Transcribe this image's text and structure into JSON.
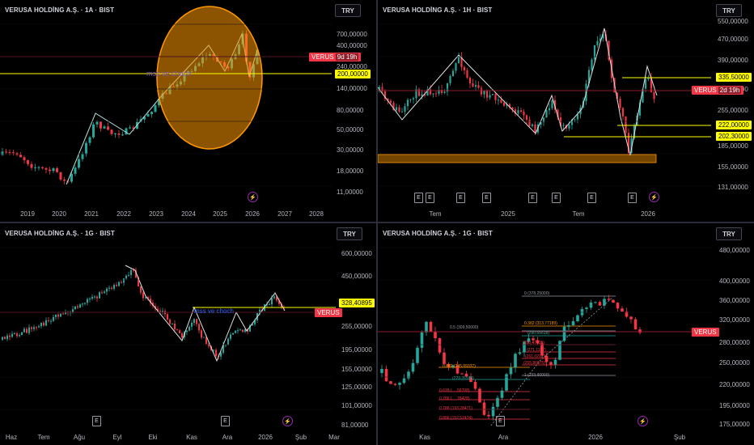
{
  "colors": {
    "up": "#26a69a",
    "down": "#f23645",
    "accent": "#ffff00",
    "circle": "#ff9800",
    "grid": "#1e222d"
  },
  "panels": {
    "p1": {
      "title": "VERUSA HOLDİNG A.Ş. · 1A · BIST",
      "currency": "TRY",
      "yticks": [
        "700,00000",
        "400,00000",
        "240,00000",
        "140,00000",
        "80,00000",
        "50,00000",
        "30,00000",
        "18,00000",
        "11,00000"
      ],
      "xticks": [
        "2019",
        "2020",
        "2021",
        "2022",
        "2023",
        "2024",
        "2025",
        "2026",
        "2027",
        "2028"
      ],
      "price_tag": "VERUS",
      "countdown": "9d 19h",
      "level": "200,00000",
      "annotation": "mss ve choch"
    },
    "p2": {
      "title": "VERUSA HOLDİNG A.Ş. · 1H · BIST",
      "currency": "TRY",
      "yticks": [
        "550,00000",
        "470,00000",
        "390,00000",
        "320,00000",
        "255,00000",
        "185,00000",
        "155,00000",
        "131,00000"
      ],
      "xticks": [
        "Tem",
        "2025",
        "Tem",
        "2026"
      ],
      "price_tag": "VERUS",
      "countdown": "2d 19h",
      "levels": [
        "335,50000",
        "222,00000",
        "202,30000"
      ],
      "events": [
        "E",
        "E",
        "E",
        "E",
        "E",
        "E",
        "E",
        "E"
      ]
    },
    "p3": {
      "title": "VERUSA HOLDİNG A.Ş. · 1G · BIST",
      "currency": "TRY",
      "yticks": [
        "600,00000",
        "450,00000",
        "255,00000",
        "195,00000",
        "155,00000",
        "125,00000",
        "101,00000",
        "81,00000"
      ],
      "xticks": [
        "Haz",
        "Tem",
        "Ağu",
        "Eyl",
        "Eki",
        "Kas",
        "Ara",
        "2026",
        "Şub",
        "Mar"
      ],
      "price_tag": "VERUS",
      "level": "328,40895",
      "annotation": "mss ve choch",
      "events": [
        "E",
        "E"
      ]
    },
    "p4": {
      "title": "VERUSA HOLDİNG A.Ş. · 1G · BIST",
      "currency": "TRY",
      "yticks": [
        "480,00000",
        "400,00000",
        "360,00000",
        "320,00000",
        "280,00000",
        "250,00000",
        "220,00000",
        "195,00000",
        "175,00000"
      ],
      "xticks": [
        "Kas",
        "Ara",
        "2026",
        "Şub"
      ],
      "price_tag": "VERUS",
      "fib_top": [
        "0 (378,25000)",
        "0.382 (313,77189)",
        "0.5 (309,50000)",
        "(290,65618)",
        "(280,47436)",
        "(271,1157)",
        "(261,02121)",
        "(255,86875)",
        "1 (233,90000)"
      ],
      "fib_bottom": [
        "0.882 (245,99337)",
        "(229,26185)",
        "0.618 (…,56708)",
        "0.786 (…,78428)",
        "0.786 (193,28471)",
        "0.886 (152,57474)"
      ],
      "events": [
        "E"
      ]
    }
  }
}
